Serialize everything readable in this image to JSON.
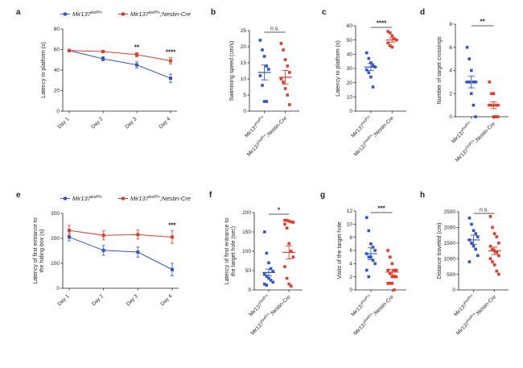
{
  "colors": {
    "wt": "#3355c8",
    "cre": "#e03c2c",
    "axis": "#222222"
  },
  "legend": {
    "wt": "Mir137loxP/+",
    "cre": "Mir137loxP/+;Nestin-Cre"
  },
  "chart_data": [
    {
      "panel": "a",
      "type": "line",
      "ylabel": "Latency to platform (s)",
      "ylim": [
        0,
        80
      ],
      "yticks": [
        0,
        20,
        40,
        60,
        80
      ],
      "categories": [
        "Day 1",
        "Day 2",
        "Day 3",
        "Day 4"
      ],
      "legend": [
        "Mir137loxP/+",
        "Mir137loxP/+;Nestin-Cre"
      ],
      "series": [
        {
          "key": "wt",
          "values": [
            59,
            51,
            45,
            32
          ],
          "err": [
            1,
            2,
            3,
            4
          ]
        },
        {
          "key": "cre",
          "values": [
            59,
            58,
            55,
            49
          ],
          "err": [
            1,
            1,
            2,
            3
          ]
        }
      ],
      "significance": [
        {
          "x": "Day 3",
          "label": "**"
        },
        {
          "x": "Day 4",
          "label": "****"
        }
      ]
    },
    {
      "panel": "b",
      "type": "scatter",
      "ylabel": "Swimming speed (cm/s)",
      "ylim": [
        0,
        25
      ],
      "yticks": [
        0,
        5,
        10,
        15,
        20,
        25
      ],
      "categories": [
        "Mir137loxP/+",
        "Mir137loxP/+;Nestin-Cre"
      ],
      "groups": [
        {
          "key": "wt",
          "mean": 12,
          "sem": 2.3,
          "values": [
            22,
            19,
            17,
            14,
            13,
            11,
            8,
            3,
            3
          ]
        },
        {
          "key": "cre",
          "mean": 10.5,
          "sem": 2.1,
          "values": [
            21,
            19,
            16,
            14,
            12,
            10,
            9,
            7,
            5,
            2
          ]
        }
      ],
      "significance": "n.s."
    },
    {
      "panel": "c",
      "type": "scatter",
      "ylabel": "Latency to platform (s)",
      "ylim": [
        0,
        60
      ],
      "yticks": [
        0,
        10,
        20,
        30,
        40,
        50,
        60
      ],
      "categories": [
        "Mir137loxP/+",
        "Mir137loxP/+;Nestin-Cre"
      ],
      "groups": [
        {
          "key": "wt",
          "mean": 31,
          "sem": 2.5,
          "values": [
            41,
            37,
            34,
            32,
            31,
            29,
            27,
            24,
            17
          ]
        },
        {
          "key": "cre",
          "mean": 50,
          "sem": 1.5,
          "values": [
            56,
            55,
            53,
            51,
            50,
            48,
            46,
            45
          ]
        }
      ],
      "significance": "****"
    },
    {
      "panel": "d",
      "type": "scatter",
      "ylabel": "Number of target crossings",
      "ylim": [
        0,
        8
      ],
      "yticks": [
        0,
        2,
        4,
        6,
        8
      ],
      "categories": [
        "Mir137loxP/+",
        "Mir137loxP/+;Nestin-Cre"
      ],
      "groups": [
        {
          "key": "wt",
          "mean": 3,
          "sem": 0.5,
          "values": [
            6,
            5,
            4,
            3,
            3,
            3,
            3,
            2,
            1,
            0
          ]
        },
        {
          "key": "cre",
          "mean": 1,
          "sem": 0.3,
          "values": [
            3,
            2,
            2,
            1,
            1,
            1,
            1,
            0,
            0,
            0
          ]
        }
      ],
      "significance": "**"
    },
    {
      "panel": "e",
      "type": "line",
      "ylabel": "Latency of first entrance to the hiding box (s)",
      "ylim": [
        0,
        300
      ],
      "yticks": [
        0,
        100,
        200,
        300
      ],
      "categories": [
        "Day 1",
        "Day 2",
        "Day 3",
        "Day 4"
      ],
      "legend": [
        "Mir137loxP/+",
        "Mir137loxP/+;Nestin-Cre"
      ],
      "series": [
        {
          "key": "wt",
          "values": [
            205,
            152,
            145,
            75
          ],
          "err": [
            15,
            20,
            20,
            25
          ]
        },
        {
          "key": "cre",
          "values": [
            232,
            212,
            215,
            205
          ],
          "err": [
            20,
            18,
            18,
            25
          ]
        }
      ],
      "significance": [
        {
          "x": "Day 4",
          "label": "***"
        }
      ]
    },
    {
      "panel": "f",
      "type": "scatter",
      "ylabel": "Latency of first entrance to the target hole (sec)",
      "ylim": [
        0,
        200
      ],
      "yticks": [
        0,
        50,
        100,
        150,
        200
      ],
      "categories": [
        "Mir137loxP/+",
        "Mir137loxP/+;Nestin-Cre"
      ],
      "groups": [
        {
          "key": "wt",
          "mean": 45,
          "sem": 9,
          "values": [
            150,
            95,
            70,
            55,
            48,
            40,
            35,
            30,
            25,
            20,
            15,
            12
          ]
        },
        {
          "key": "cre",
          "mean": 97,
          "sem": 17,
          "values": [
            180,
            180,
            178,
            176,
            175,
            170,
            160,
            120,
            100,
            85,
            60,
            30,
            15,
            10
          ]
        }
      ],
      "significance": "*"
    },
    {
      "panel": "g",
      "type": "scatter",
      "ylabel": "Visits of the target hole",
      "ylim": [
        0,
        12
      ],
      "yticks": [
        0,
        2,
        4,
        6,
        8,
        10,
        12
      ],
      "categories": [
        "Mir137loxP/+",
        "Mir137loxP/+;Nestin-Cre"
      ],
      "groups": [
        {
          "key": "wt",
          "mean": 5.5,
          "sem": 0.9,
          "values": [
            11,
            9,
            7,
            6.5,
            6,
            5.5,
            5,
            5,
            4.5,
            4,
            3,
            2
          ]
        },
        {
          "key": "cre",
          "mean": 2.7,
          "sem": 0.4,
          "values": [
            6,
            5,
            4,
            3,
            3,
            3,
            2.5,
            2,
            2,
            2,
            1,
            1,
            1,
            0
          ]
        }
      ],
      "significance": "***"
    },
    {
      "panel": "h",
      "type": "scatter",
      "ylabel": "Distance traveled (cm)",
      "ylim": [
        0,
        2500
      ],
      "yticks": [
        0,
        500,
        1000,
        1500,
        2000,
        2500
      ],
      "categories": [
        "Mir137loxP/+",
        "Mir137loxP/+;Nestin-Cre"
      ],
      "groups": [
        {
          "key": "wt",
          "mean": 1600,
          "sem": 150,
          "values": [
            2300,
            2100,
            1900,
            1800,
            1700,
            1600,
            1500,
            1400,
            1300,
            1100,
            900
          ]
        },
        {
          "key": "cre",
          "mean": 1250,
          "sem": 120,
          "values": [
            2350,
            2000,
            1800,
            1700,
            1500,
            1400,
            1300,
            1250,
            1200,
            1100,
            1000,
            900,
            800,
            600,
            500
          ]
        }
      ],
      "significance": "n.s."
    }
  ]
}
